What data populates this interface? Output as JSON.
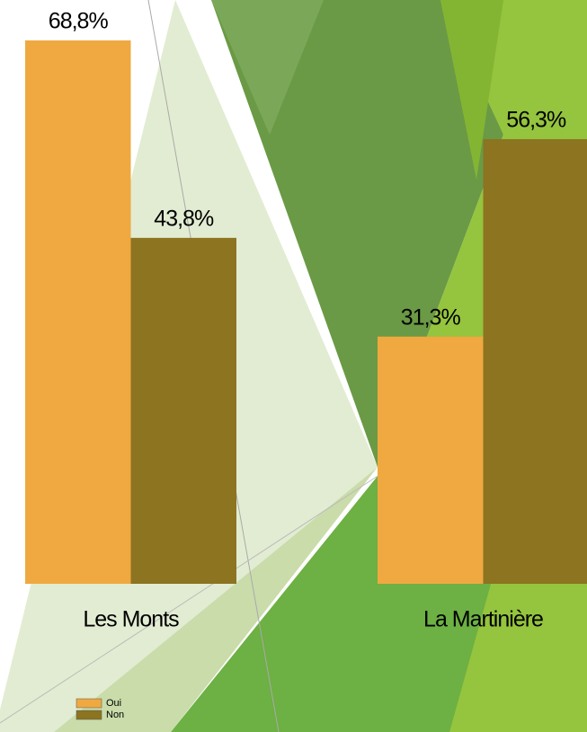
{
  "chart_data": {
    "type": "bar",
    "categories": [
      "Les Monts",
      "La Martinière"
    ],
    "series": [
      {
        "name": "Oui",
        "color": "#efa940",
        "values": [
          68.8,
          31.3
        ],
        "value_labels": [
          "68,8%",
          "31,3%"
        ]
      },
      {
        "name": "Non",
        "color": "#8c7420",
        "values": [
          43.8,
          56.3
        ],
        "value_labels": [
          "43,8%",
          "56,3%"
        ]
      }
    ]
  }
}
